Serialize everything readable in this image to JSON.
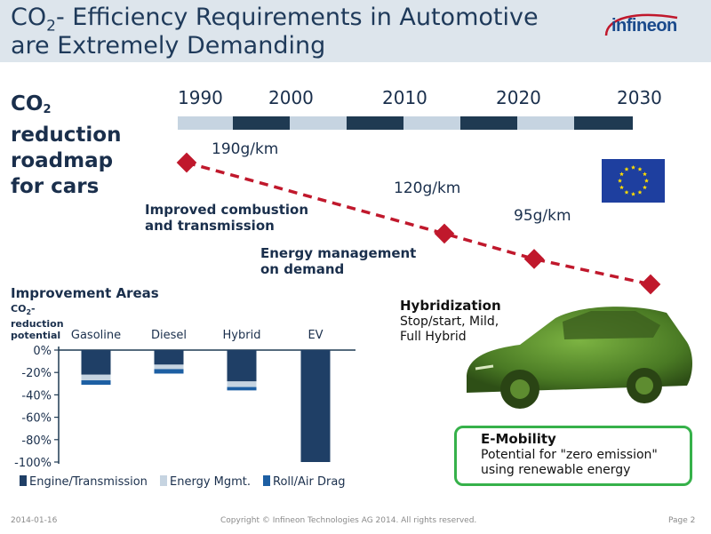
{
  "header": {
    "title_line1_pre": "CO",
    "title_line1_sub": "2",
    "title_line1_post": "- Efficiency Requirements in Automotive",
    "title_line2": "are Extremely Demanding",
    "logo_text": "infineon"
  },
  "roadmap": {
    "title_line1": "CO",
    "title_line1_sub": "2",
    "title_line2": "reduction",
    "title_line3": "roadmap",
    "title_line4": "for cars",
    "years": [
      "1990",
      "2000",
      "2010",
      "2020",
      "2030"
    ],
    "targets": [
      {
        "label": "190g/km",
        "value": 190
      },
      {
        "label": "120g/km",
        "value": 120
      },
      {
        "label": "95g/km",
        "value": 95
      },
      {
        "label": "",
        "value": 70
      }
    ],
    "annotation_combustion_line1": "Improved combustion",
    "annotation_combustion_line2": "and transmission",
    "annotation_energy_line1": "Energy management",
    "annotation_energy_line2": "on demand",
    "marker_color": "#c0182c",
    "flag_color": "#1e3f9f",
    "flag_star_color": "#ffdd00"
  },
  "improvement": {
    "title": "Improvement Areas",
    "ylabel_line1_pre": "CO",
    "ylabel_line1_sub": "2",
    "ylabel_line1_post": "-",
    "ylabel_line2": "reduction",
    "ylabel_line3": "potential"
  },
  "chart_data": {
    "type": "bar",
    "stacked": true,
    "categories": [
      "Gasoline",
      "Diesel",
      "Hybrid",
      "EV"
    ],
    "series": [
      {
        "name": "Engine/Transmission",
        "color": "#1f3f66",
        "values": [
          -22,
          -13,
          -28,
          -100
        ]
      },
      {
        "name": "Energy Mgmt.",
        "color": "#c6d4e1",
        "values": [
          -5,
          -4,
          -5,
          0
        ]
      },
      {
        "name": "Roll/Air Drag",
        "color": "#1d5fa3",
        "values": [
          -4,
          -4,
          -3,
          0
        ]
      }
    ],
    "ylim": [
      -100,
      0
    ],
    "yticks": [
      "0%",
      "-20%",
      "-40%",
      "-60%",
      "-80%",
      "-100%"
    ],
    "ytick_values": [
      0,
      -20,
      -40,
      -60,
      -80,
      -100
    ],
    "grid": false,
    "legend_position": "bottom"
  },
  "hybrid": {
    "title": "Hybridization",
    "line1": "Stop/start, Mild,",
    "line2": "Full Hybrid"
  },
  "emobility": {
    "title": "E-Mobility",
    "line1": "Potential for \"zero emission\"",
    "line2": "using renewable energy",
    "border_color": "#36b14a"
  },
  "footer": {
    "date": "2014-01-16",
    "copyright": "Copyright © Infineon Technologies AG 2014. All rights reserved.",
    "page": "Page 2"
  }
}
